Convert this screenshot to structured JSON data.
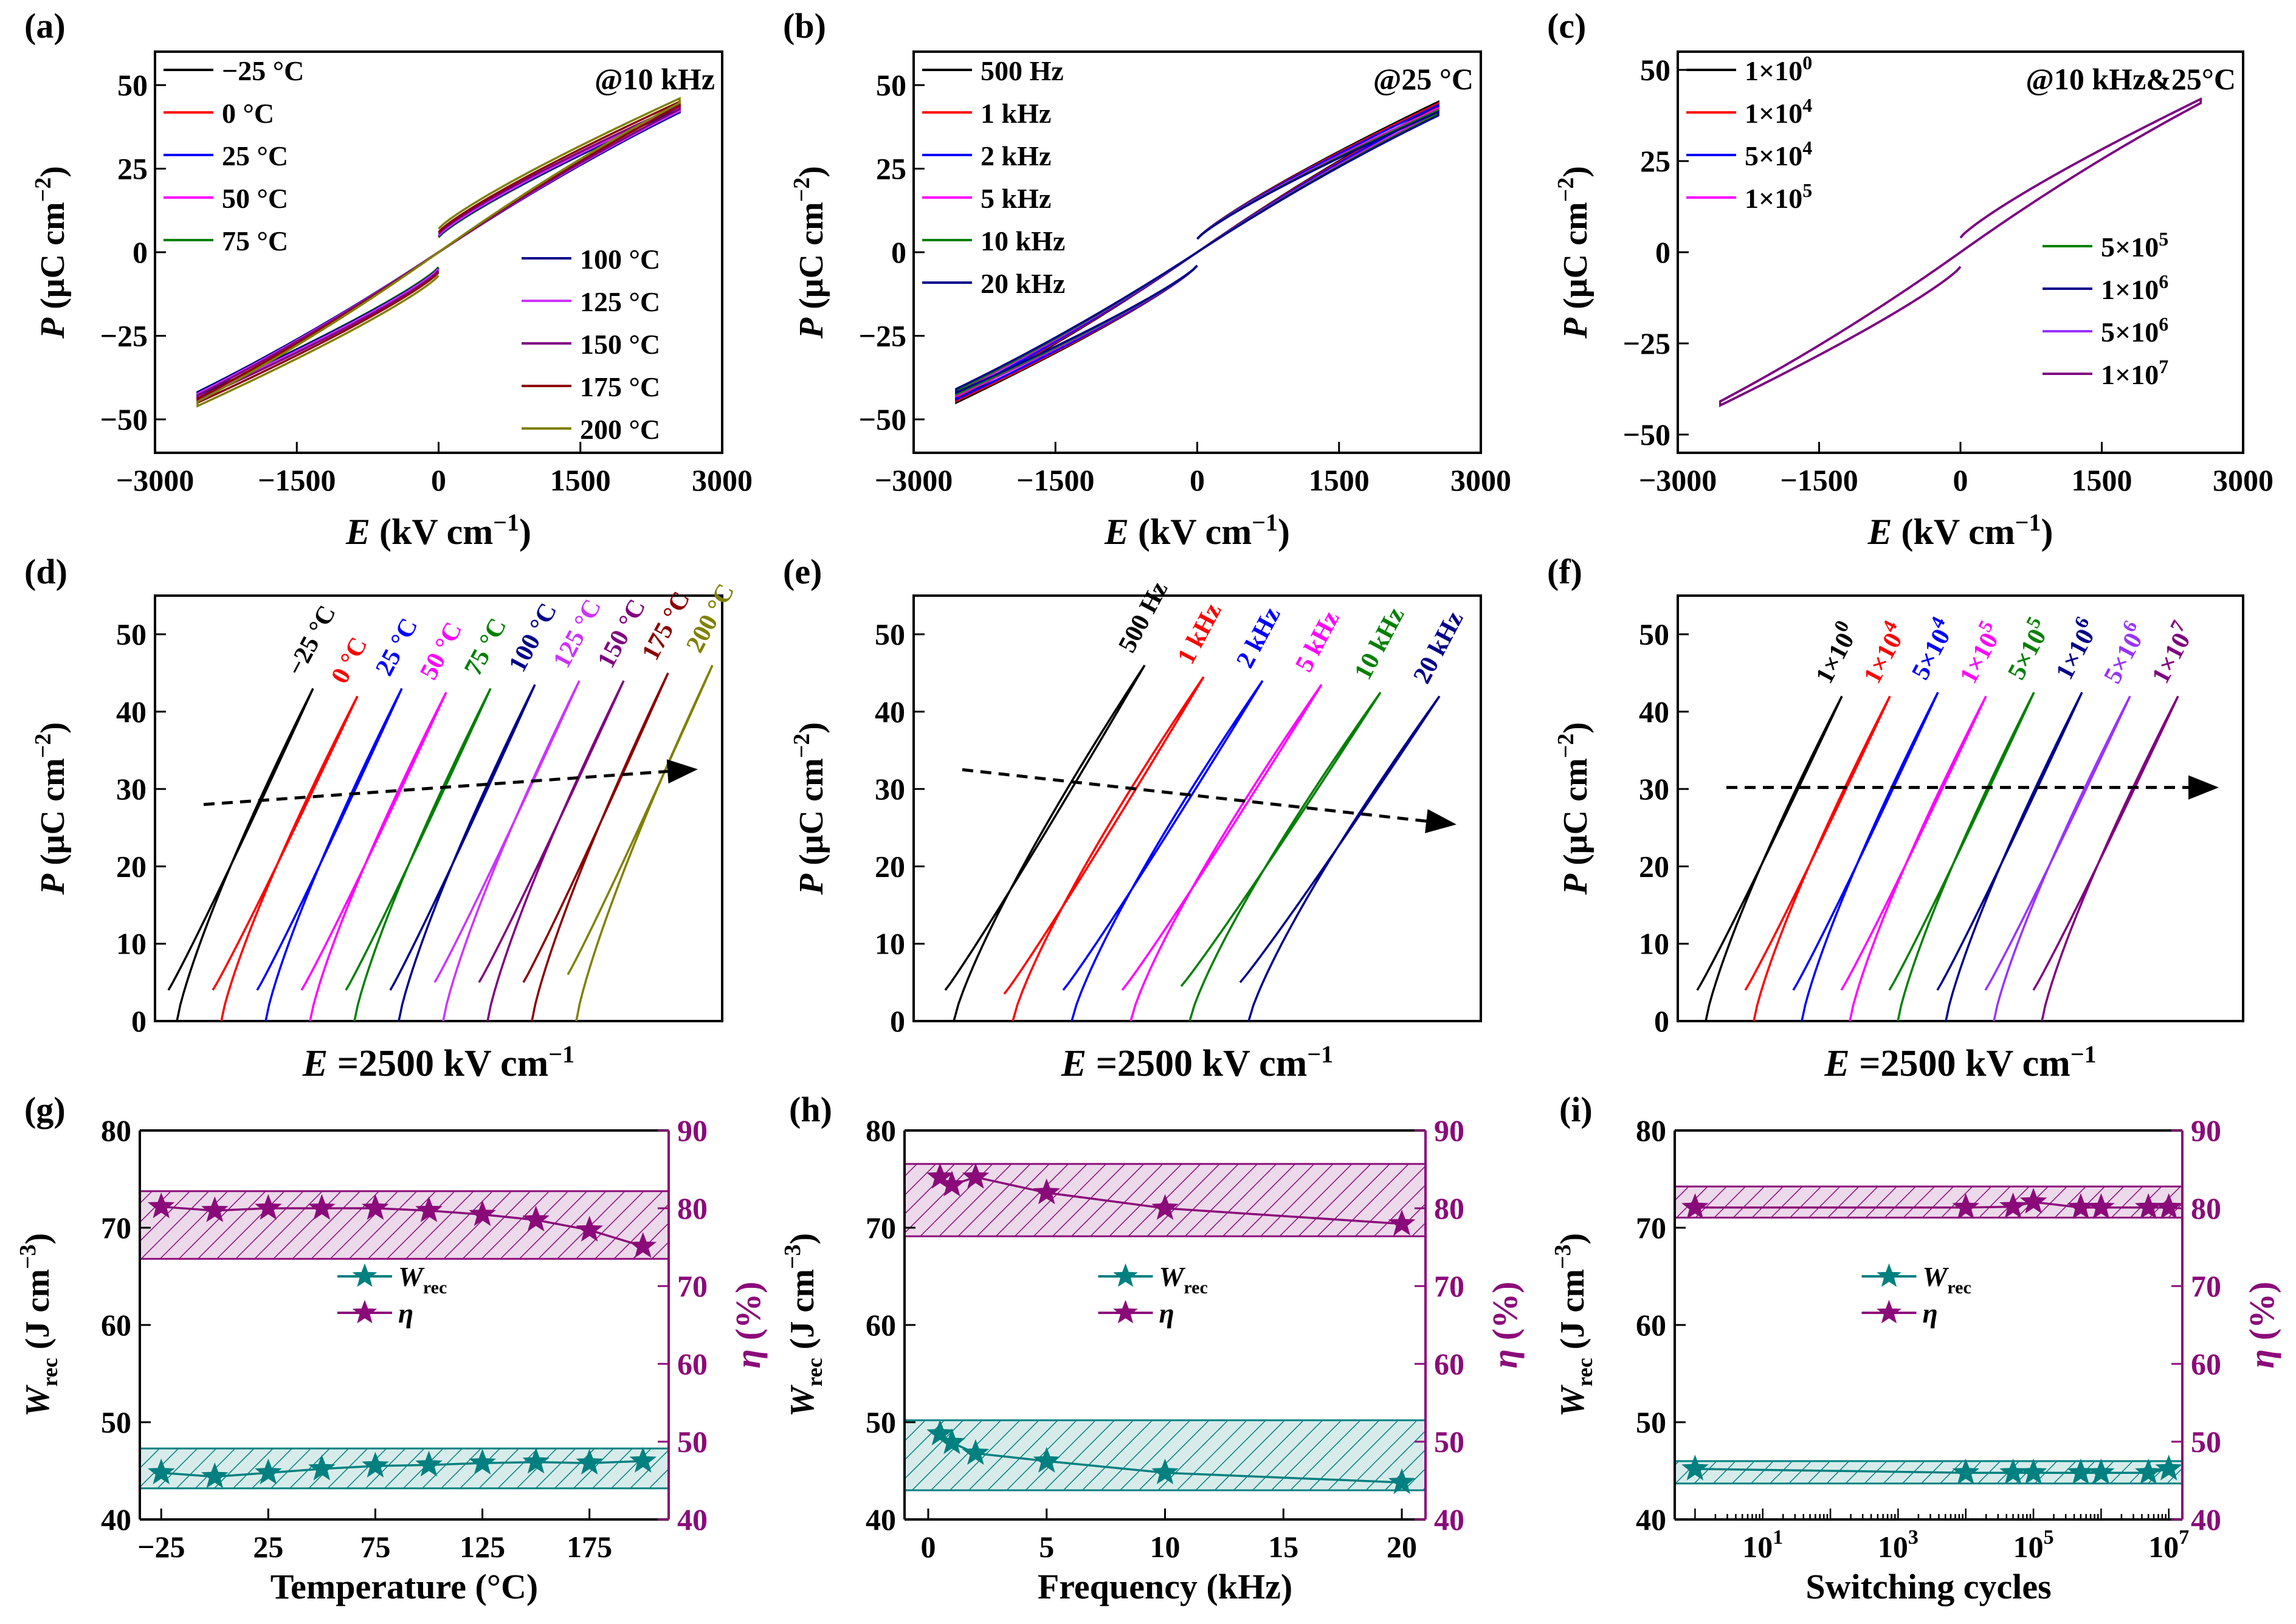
{
  "chart_data": [
    {
      "id": "a",
      "type": "line",
      "panel_label": "(a)",
      "annotation": "@10 kHz",
      "xlabel": "E (kV cm−1)",
      "ylabel": "P (μC cm−2)",
      "xlim": [
        -3000,
        3000
      ],
      "ylim": [
        -60,
        60
      ],
      "xticks": [
        "−3000",
        "−1500",
        "0",
        "1500",
        "3000"
      ],
      "yticks": [
        "−50",
        "−25",
        "0",
        "25",
        "50"
      ],
      "legend_left": [
        "−25 °C",
        "0 °C",
        "25 °C",
        "50 °C",
        "75 °C"
      ],
      "legend_right": [
        "100 °C",
        "125 °C",
        "150 °C",
        "175 °C",
        "200 °C"
      ],
      "colors": [
        "#000000",
        "#ff0000",
        "#0000ff",
        "#ff00ff",
        "#008000",
        "#00008b",
        "#cc33ff",
        "#800080",
        "#8b0000",
        "#808000"
      ],
      "series": [
        {
          "name": "−25 °C",
          "Pmax": 43,
          "Pr": 4.5
        },
        {
          "name": "0 °C",
          "Pmax": 43,
          "Pr": 4.5
        },
        {
          "name": "25 °C",
          "Pmax": 43,
          "Pr": 4.5
        },
        {
          "name": "50 °C",
          "Pmax": 43,
          "Pr": 4.5
        },
        {
          "name": "75 °C",
          "Pmax": 43,
          "Pr": 4.5
        },
        {
          "name": "100 °C",
          "Pmax": 43,
          "Pr": 4.8
        },
        {
          "name": "125 °C",
          "Pmax": 43.5,
          "Pr": 5
        },
        {
          "name": "150 °C",
          "Pmax": 44,
          "Pr": 5.5
        },
        {
          "name": "175 °C",
          "Pmax": 45,
          "Pr": 6
        },
        {
          "name": "200 °C",
          "Pmax": 46,
          "Pr": 7
        }
      ]
    },
    {
      "id": "b",
      "type": "line",
      "panel_label": "(b)",
      "annotation": "@25 °C",
      "xlabel": "E (kV cm−1)",
      "ylabel": "P (μC cm−2)",
      "xlim": [
        -3000,
        3000
      ],
      "ylim": [
        -60,
        60
      ],
      "xticks": [
        "−3000",
        "−1500",
        "0",
        "1500",
        "3000"
      ],
      "yticks": [
        "−50",
        "−25",
        "0",
        "25",
        "50"
      ],
      "legend_left": [
        "500 Hz",
        "1 kHz",
        "2 kHz",
        "5 kHz",
        "10 kHz",
        "20 kHz"
      ],
      "colors": [
        "#000000",
        "#ff0000",
        "#0000ff",
        "#ff00ff",
        "#008000",
        "#00008b"
      ],
      "series": [
        {
          "name": "500 Hz",
          "Pmax": 45,
          "Pr": 4
        },
        {
          "name": "1 kHz",
          "Pmax": 44.5,
          "Pr": 4
        },
        {
          "name": "2 kHz",
          "Pmax": 44,
          "Pr": 4
        },
        {
          "name": "5 kHz",
          "Pmax": 43,
          "Pr": 4
        },
        {
          "name": "10 kHz",
          "Pmax": 42.5,
          "Pr": 4
        },
        {
          "name": "20 kHz",
          "Pmax": 42,
          "Pr": 4
        }
      ]
    },
    {
      "id": "c",
      "type": "line",
      "panel_label": "(c)",
      "annotation": "@10 kHz&25°C",
      "xlabel": "E (kV cm−1)",
      "ylabel": "P (μC cm−2)",
      "xlim": [
        -3000,
        3000
      ],
      "ylim": [
        -55,
        55
      ],
      "xticks": [
        "−3000",
        "−1500",
        "0",
        "1500",
        "3000"
      ],
      "yticks": [
        "−50",
        "−25",
        "0",
        "25",
        "50"
      ],
      "legend_left": [
        "1×10^0",
        "1×10^4",
        "5×10^4",
        "1×10^5"
      ],
      "legend_right": [
        "5×10^5",
        "1×10^6",
        "5×10^6",
        "1×10^7"
      ],
      "colors": [
        "#000000",
        "#ff0000",
        "#0000ff",
        "#ff00ff",
        "#008000",
        "#00008b",
        "#9933ff",
        "#800080"
      ],
      "series": [
        {
          "name": "1×10^0",
          "Pmax": 42,
          "Pr": 4
        },
        {
          "name": "1×10^4",
          "Pmax": 42,
          "Pr": 4
        },
        {
          "name": "5×10^4",
          "Pmax": 42,
          "Pr": 4
        },
        {
          "name": "1×10^5",
          "Pmax": 42,
          "Pr": 4
        },
        {
          "name": "5×10^5",
          "Pmax": 42,
          "Pr": 4
        },
        {
          "name": "1×10^6",
          "Pmax": 42,
          "Pr": 4
        },
        {
          "name": "5×10^6",
          "Pmax": 42,
          "Pr": 4
        },
        {
          "name": "1×10^7",
          "Pmax": 42,
          "Pr": 4
        }
      ]
    },
    {
      "id": "d",
      "type": "line",
      "panel_label": "(d)",
      "xlabel": "E =2500 kV cm−1",
      "ylabel": "P (μC cm−2)",
      "ylim": [
        0,
        55
      ],
      "yticks": [
        "0",
        "10",
        "20",
        "30",
        "40",
        "50"
      ],
      "arrow": {
        "from": 28,
        "to": 32.5
      },
      "colors": [
        "#000000",
        "#ff0000",
        "#0000ff",
        "#ff00ff",
        "#008000",
        "#00008b",
        "#cc33ff",
        "#800080",
        "#8b0000",
        "#808000"
      ],
      "series": [
        {
          "name": "−25 °C",
          "Pmax": 43,
          "Pmin": 4
        },
        {
          "name": "0 °C",
          "Pmax": 42,
          "Pmin": 4
        },
        {
          "name": "25 °C",
          "Pmax": 43,
          "Pmin": 4
        },
        {
          "name": "50 °C",
          "Pmax": 42.5,
          "Pmin": 4
        },
        {
          "name": "75 °C",
          "Pmax": 43,
          "Pmin": 4
        },
        {
          "name": "100 °C",
          "Pmax": 43.5,
          "Pmin": 4
        },
        {
          "name": "125 °C",
          "Pmax": 44,
          "Pmin": 5
        },
        {
          "name": "150 °C",
          "Pmax": 44,
          "Pmin": 5
        },
        {
          "name": "175 °C",
          "Pmax": 45,
          "Pmin": 5
        },
        {
          "name": "200 °C",
          "Pmax": 46,
          "Pmin": 6
        }
      ]
    },
    {
      "id": "e",
      "type": "line",
      "panel_label": "(e)",
      "xlabel": "E =2500 kV cm−1",
      "ylabel": "P (μC cm−2)",
      "ylim": [
        0,
        55
      ],
      "yticks": [
        "0",
        "10",
        "20",
        "30",
        "40",
        "50"
      ],
      "arrow": {
        "from": 32.5,
        "to": 25.5
      },
      "colors": [
        "#000000",
        "#ff0000",
        "#0000ff",
        "#ff00ff",
        "#008000",
        "#00008b"
      ],
      "series": [
        {
          "name": "500 Hz",
          "Pmax": 46,
          "Pmin": 4
        },
        {
          "name": "1 kHz",
          "Pmax": 44.5,
          "Pmin": 3.5
        },
        {
          "name": "2 kHz",
          "Pmax": 44,
          "Pmin": 4
        },
        {
          "name": "5 kHz",
          "Pmax": 43.5,
          "Pmin": 4
        },
        {
          "name": "10 kHz",
          "Pmax": 42.5,
          "Pmin": 4.5
        },
        {
          "name": "20 kHz",
          "Pmax": 42,
          "Pmin": 5
        }
      ]
    },
    {
      "id": "f",
      "type": "line",
      "panel_label": "(f)",
      "xlabel": "E =2500 kV cm−1",
      "ylabel": "P (μC cm−2)",
      "ylim": [
        0,
        55
      ],
      "yticks": [
        "0",
        "10",
        "20",
        "30",
        "40",
        "50"
      ],
      "arrow": {
        "from": 30.2,
        "to": 30.2
      },
      "colors": [
        "#000000",
        "#ff0000",
        "#0000ff",
        "#ff00ff",
        "#008000",
        "#00008b",
        "#9933ff",
        "#800080"
      ],
      "series": [
        {
          "name": "1×10^0",
          "Pmax": 42,
          "Pmin": 4
        },
        {
          "name": "1×10^4",
          "Pmax": 42,
          "Pmin": 4
        },
        {
          "name": "5×10^4",
          "Pmax": 42.5,
          "Pmin": 4
        },
        {
          "name": "1×10^5",
          "Pmax": 42,
          "Pmin": 4
        },
        {
          "name": "5×10^5",
          "Pmax": 42.5,
          "Pmin": 4
        },
        {
          "name": "1×10^6",
          "Pmax": 42.5,
          "Pmin": 4
        },
        {
          "name": "5×10^6",
          "Pmax": 42,
          "Pmin": 4
        },
        {
          "name": "1×10^7",
          "Pmax": 42,
          "Pmin": 4
        }
      ]
    },
    {
      "id": "g",
      "type": "line",
      "panel_label": "(g)",
      "xlabel": "Temperature (°C)",
      "ylabel_left": "Wrec (J cm−3)",
      "ylabel_right": "η (%)",
      "xlim": [
        -35,
        212
      ],
      "xticks": [
        -25,
        25,
        75,
        125,
        175
      ],
      "xtick_labels": [
        "−25",
        "25",
        "75",
        "125",
        "175"
      ],
      "ylim_left": [
        40,
        80
      ],
      "ylim_right": [
        40,
        90
      ],
      "yticks_left": [
        "40",
        "50",
        "60",
        "70",
        "80"
      ],
      "yticks_right": [
        "40",
        "50",
        "60",
        "70",
        "80",
        "90"
      ],
      "x": [
        -25,
        0,
        25,
        50,
        75,
        100,
        125,
        150,
        175,
        200
      ],
      "Wrec": [
        44.8,
        44.4,
        44.8,
        45.2,
        45.5,
        45.6,
        45.8,
        45.9,
        45.8,
        46
      ],
      "eta": [
        80.2,
        79.7,
        80,
        80,
        80,
        79.7,
        79.2,
        78.5,
        77.2,
        75.1
      ],
      "Wrec_band": [
        43.2,
        47.3
      ],
      "eta_band": [
        73.5,
        82.2
      ],
      "legend": [
        "Wrec",
        "η"
      ],
      "colors": {
        "Wrec": "#008080",
        "eta": "#8b0a7a"
      }
    },
    {
      "id": "h",
      "type": "line",
      "panel_label": "(h)",
      "xlabel": "Frequency (kHz)",
      "ylabel_left": "Wrec (J cm−3)",
      "ylabel_right": "η (%)",
      "xlim": [
        -1,
        21
      ],
      "xticks": [
        0,
        5,
        10,
        15,
        20
      ],
      "xtick_labels": [
        "0",
        "5",
        "10",
        "15",
        "20"
      ],
      "ylim_left": [
        40,
        80
      ],
      "ylim_right": [
        40,
        90
      ],
      "yticks_left": [
        "40",
        "50",
        "60",
        "70",
        "80"
      ],
      "yticks_right": [
        "40",
        "50",
        "60",
        "70",
        "80",
        "90"
      ],
      "x": [
        0.5,
        1,
        2,
        5,
        10,
        20
      ],
      "Wrec": [
        48.8,
        47.9,
        46.8,
        46,
        44.8,
        43.8
      ],
      "eta": [
        84,
        83,
        84,
        82,
        80,
        78
      ],
      "Wrec_band": [
        43,
        50.2
      ],
      "eta_band": [
        76.4,
        85.7
      ],
      "legend": [
        "Wrec",
        "η"
      ],
      "colors": {
        "Wrec": "#008080",
        "eta": "#8b0a7a"
      }
    },
    {
      "id": "i",
      "type": "line",
      "panel_label": "(i)",
      "xscale": "log",
      "xlabel": "Switching cycles",
      "ylabel_left": "Wrec (J cm−3)",
      "ylabel_right": "η (%)",
      "xlim_log": [
        -0.3,
        7.2
      ],
      "xticks_log": [
        1,
        3,
        5,
        7
      ],
      "xtick_labels": [
        "10",
        "10",
        "10",
        "10"
      ],
      "xtick_exps": [
        "1",
        "3",
        "5",
        "7"
      ],
      "ylim_left": [
        40,
        80
      ],
      "ylim_right": [
        40,
        90
      ],
      "yticks_left": [
        "40",
        "50",
        "60",
        "70",
        "80"
      ],
      "yticks_right": [
        "40",
        "50",
        "60",
        "70",
        "80",
        "90"
      ],
      "x": [
        1,
        10000,
        50000,
        100000,
        500000,
        1000000,
        5000000,
        10000000
      ],
      "Wrec": [
        45.2,
        44.8,
        44.8,
        44.8,
        44.8,
        44.8,
        44.8,
        45.2
      ],
      "eta": [
        80.1,
        80.1,
        80.2,
        80.8,
        80.1,
        80.1,
        80.1,
        80.1
      ],
      "Wrec_band": [
        43.7,
        46
      ],
      "eta_band": [
        78.8,
        82.8
      ],
      "legend": [
        "Wrec",
        "η"
      ],
      "colors": {
        "Wrec": "#008080",
        "eta": "#8b0a7a"
      }
    }
  ]
}
